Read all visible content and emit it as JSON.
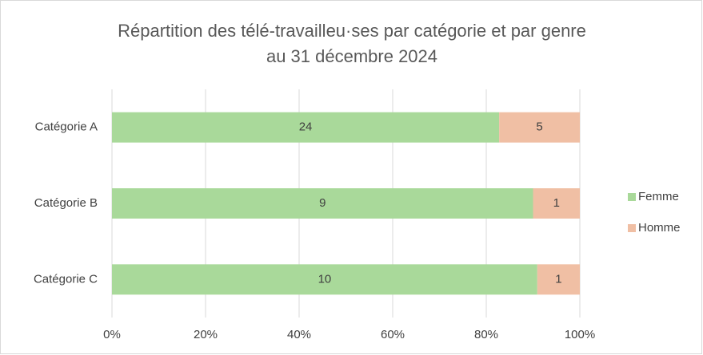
{
  "chart_data": {
    "type": "bar",
    "orientation": "horizontal",
    "stacked": "percent",
    "title": [
      "Répartition des télé-travailleu·ses par catégorie et par genre",
      "au 31 décembre 2024"
    ],
    "categories": [
      "Catégorie A",
      "Catégorie B",
      "Catégorie C"
    ],
    "series": [
      {
        "name": "Femme",
        "color": "#a9d99a",
        "values": [
          24,
          9,
          10
        ]
      },
      {
        "name": "Homme",
        "color": "#f0bfa4",
        "values": [
          5,
          1,
          1
        ]
      }
    ],
    "xlim": [
      0,
      100
    ],
    "xticks": [
      {
        "value": 0,
        "label": "0%"
      },
      {
        "value": 20,
        "label": "20%"
      },
      {
        "value": 40,
        "label": "40%"
      },
      {
        "value": 60,
        "label": "60%"
      },
      {
        "value": 80,
        "label": "80%"
      },
      {
        "value": 100,
        "label": "100%"
      }
    ],
    "grid": true,
    "legend": "right"
  }
}
